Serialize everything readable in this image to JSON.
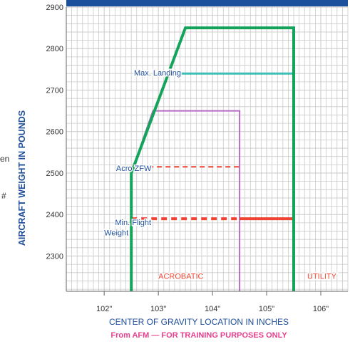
{
  "chart_data": {
    "type": "line",
    "ylabel": "AIRCRAFT WEIGHT IN POUNDS",
    "xlabel": "CENTER OF GRAVITY LOCATION IN INCHES",
    "subtitle": "From AFM — FOR TRAINING PURPOSES ONLY",
    "xlim": [
      101.3,
      106.5
    ],
    "ylim": [
      2215,
      2900
    ],
    "y_ticks": [
      2300,
      2400,
      2500,
      2600,
      2700,
      2800,
      2900
    ],
    "x_ticks": [
      102,
      103,
      104,
      105,
      106
    ],
    "x_tick_labels": [
      "102\"",
      "103\"",
      "104\"",
      "105\"",
      "106\""
    ],
    "grid": true,
    "series": [
      {
        "key": "utility",
        "color": "#13a35a",
        "style": "solid",
        "points": [
          [
            102.5,
            2215
          ],
          [
            102.5,
            2500
          ],
          [
            103.5,
            2850
          ],
          [
            105.5,
            2850
          ],
          [
            105.5,
            2215
          ]
        ]
      },
      {
        "key": "acro",
        "color": "#b76cc4",
        "style": "solid",
        "points": [
          [
            102.5,
            2215
          ],
          [
            102.5,
            2500
          ],
          [
            102.9,
            2650
          ],
          [
            104.5,
            2650
          ],
          [
            104.5,
            2215
          ]
        ]
      },
      {
        "key": "max_landing",
        "color": "#3dbdb6",
        "style": "solid",
        "points": [
          [
            103.3,
            2740
          ],
          [
            105.5,
            2740
          ]
        ]
      },
      {
        "key": "acro_zfw",
        "color": "#ee4232",
        "style": "dashed",
        "points": [
          [
            102.5,
            2515
          ],
          [
            104.5,
            2515
          ]
        ]
      },
      {
        "key": "min_flight_dashed",
        "color": "#ee4232",
        "style": "dashed-thick",
        "points": [
          [
            102.5,
            2390
          ],
          [
            104.5,
            2390
          ]
        ]
      },
      {
        "key": "min_flight_solid",
        "color": "#ee4232",
        "style": "solid-thick",
        "points": [
          [
            104.5,
            2390
          ],
          [
            105.5,
            2390
          ]
        ]
      }
    ],
    "annotations": [
      {
        "text": "Max. Landing",
        "color": "#1f4e9a",
        "x": 102.55,
        "y": 2735
      },
      {
        "text": "Acro ZFW",
        "color": "#1f4e9a",
        "x": 102.22,
        "y": 2505
      },
      {
        "text": "Min. Flight",
        "color": "#1f4e9a",
        "x": 102.2,
        "y": 2375
      },
      {
        "text": "Weight",
        "color": "#1f4e9a",
        "x": 102.0,
        "y": 2350
      },
      {
        "text": "ACROBATIC",
        "color": "#ee4232",
        "x": 103.0,
        "y": 2245
      },
      {
        "text": "UTILITY",
        "color": "#ee4232",
        "x": 105.75,
        "y": 2245
      }
    ],
    "axis_color": "#1f4e9a",
    "subtitle_color": "#e6408d",
    "grid_color": "#c9c9c9",
    "header_bar_color": "#1c4f9c"
  },
  "margin_fragments": [
    "en",
    "#"
  ]
}
